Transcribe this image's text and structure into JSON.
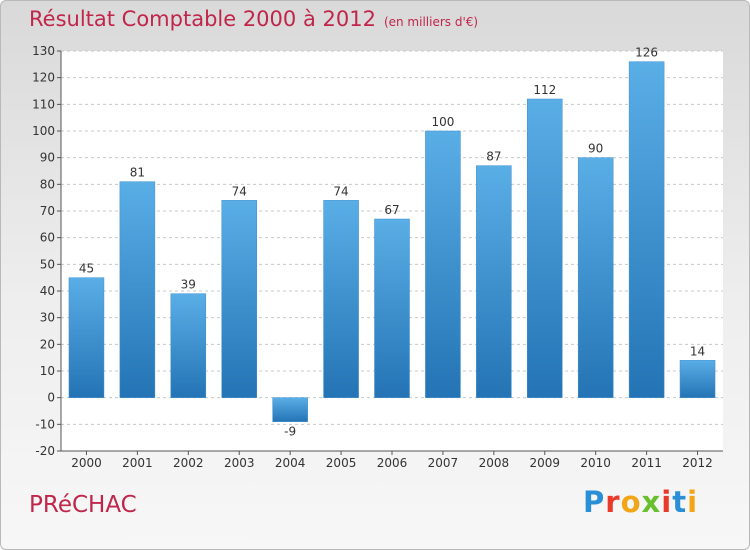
{
  "header": {
    "title": "Résultat Comptable 2000 à 2012",
    "subtitle": "(en milliers d'€)"
  },
  "footer": {
    "commune": "PRéCHAC",
    "logo_letters": [
      "P",
      "r",
      "o",
      "x",
      "i",
      "t",
      "i"
    ]
  },
  "colors": {
    "bar_top": "#5aaee6",
    "bar_bottom": "#2474b5",
    "title": "#c0254a",
    "logo": [
      "#2a8fd6",
      "#e8392b",
      "#f2a516",
      "#6abf2e",
      "#e8392b",
      "#2a8fd6",
      "#f2a516"
    ]
  },
  "chart_data": {
    "type": "bar",
    "title": "Résultat Comptable 2000 à 2012",
    "xlabel": "",
    "ylabel": "",
    "categories": [
      "2000",
      "2001",
      "2002",
      "2003",
      "2004",
      "2005",
      "2006",
      "2007",
      "2008",
      "2009",
      "2010",
      "2011",
      "2012"
    ],
    "values": [
      45,
      81,
      39,
      74,
      -9,
      74,
      67,
      100,
      87,
      112,
      90,
      126,
      14
    ],
    "ylim": [
      -20,
      130
    ],
    "yticks": [
      -20,
      -10,
      0,
      10,
      20,
      30,
      40,
      50,
      60,
      70,
      80,
      90,
      100,
      110,
      120,
      130
    ],
    "grid": "horizontal-dashed",
    "legend": "none"
  }
}
